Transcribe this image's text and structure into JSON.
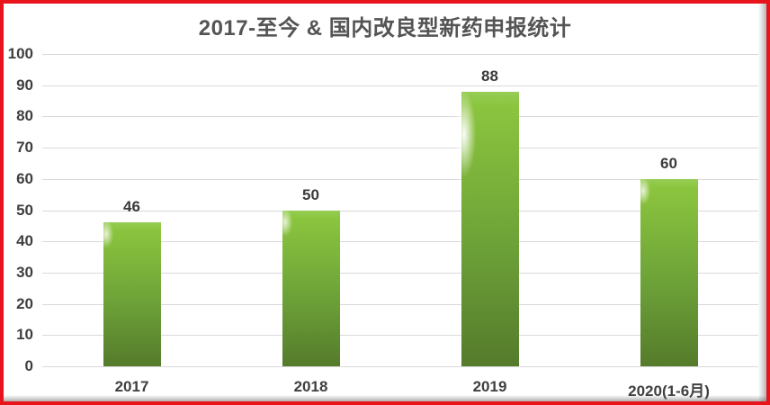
{
  "chart_data": {
    "type": "bar",
    "title": "2017-至今 & 国内改良型新药申报统计",
    "categories": [
      "2017",
      "2018",
      "2019",
      "2020(1-6月)"
    ],
    "values": [
      46,
      50,
      88,
      60
    ],
    "xlabel": "",
    "ylabel": "",
    "ylim": [
      0,
      100
    ],
    "yticks": [
      0,
      10,
      20,
      30,
      40,
      50,
      60,
      70,
      80,
      90,
      100
    ],
    "grid": true,
    "legend_position": "none",
    "glow_bar_index": 2
  },
  "colors": {
    "frame_border": "#e8141c",
    "bar_top": "#8bc53e",
    "bar_bottom": "#557b2b",
    "gridline": "#d9d9d9",
    "title_text": "#545454",
    "label_text": "#3f3f3f"
  }
}
